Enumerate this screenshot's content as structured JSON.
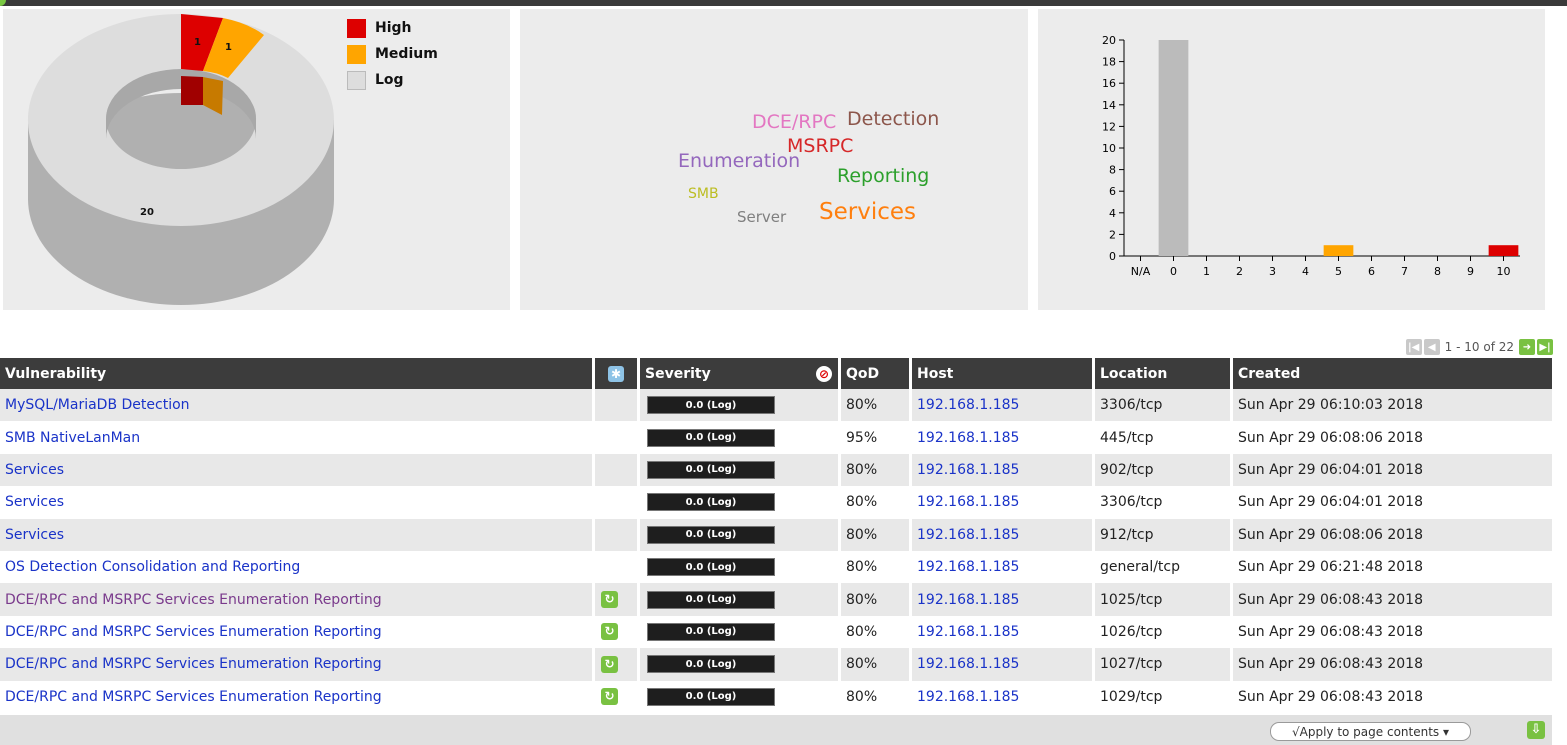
{
  "severity_donut": {
    "legend": [
      {
        "label": "High",
        "color": "#dd0000"
      },
      {
        "label": "Medium",
        "color": "#ffa500"
      },
      {
        "label": "Log",
        "color": "#dddddd"
      }
    ],
    "slice_labels": {
      "high": "1",
      "medium": "1",
      "log": "20"
    },
    "counts": {
      "high": 1,
      "medium": 1,
      "log": 20
    }
  },
  "word_cloud": {
    "words": [
      {
        "text": "DCE/RPC",
        "color": "#e377c2"
      },
      {
        "text": "Detection",
        "color": "#8c564b"
      },
      {
        "text": "MSRPC",
        "color": "#d62728"
      },
      {
        "text": "Enumeration",
        "color": "#9467bd"
      },
      {
        "text": "Reporting",
        "color": "#2ca02c"
      },
      {
        "text": "SMB",
        "color": "#bcbd22"
      },
      {
        "text": "Server",
        "color": "#7f7f7f"
      },
      {
        "text": "Services",
        "color": "#ff7f0e"
      }
    ]
  },
  "chart_data": {
    "type": "bar",
    "categories": [
      "N/A",
      "0",
      "1",
      "2",
      "3",
      "4",
      "5",
      "6",
      "7",
      "8",
      "9",
      "10"
    ],
    "values": [
      0,
      20,
      0,
      0,
      0,
      0,
      1,
      0,
      0,
      0,
      0,
      1
    ],
    "bar_colors": [
      "#bbbbbb",
      "#bbbbbb",
      "#bbbbbb",
      "#bbbbbb",
      "#bbbbbb",
      "#bbbbbb",
      "#ffa500",
      "#bbbbbb",
      "#bbbbbb",
      "#bbbbbb",
      "#bbbbbb",
      "#dd0000"
    ],
    "y_ticks": [
      "0",
      "2",
      "4",
      "6",
      "8",
      "10",
      "12",
      "14",
      "16",
      "18",
      "20"
    ],
    "ylim": [
      0,
      20
    ],
    "title": "",
    "xlabel": "",
    "ylabel": ""
  },
  "pager": {
    "text": "1 - 10 of 22"
  },
  "table": {
    "headers": {
      "vulnerability": "Vulnerability",
      "severity": "Severity",
      "qod": "QoD",
      "host": "Host",
      "location": "Location",
      "created": "Created"
    },
    "severity_label": "0.0 (Log)",
    "rows": [
      {
        "vulnerability": "MySQL/MariaDB Detection",
        "qod": "80%",
        "host": "192.168.1.185",
        "location": "3306/tcp",
        "created": "Sun Apr 29 06:10:03 2018"
      },
      {
        "vulnerability": "SMB NativeLanMan",
        "qod": "95%",
        "host": "192.168.1.185",
        "location": "445/tcp",
        "created": "Sun Apr 29 06:08:06 2018"
      },
      {
        "vulnerability": "Services",
        "qod": "80%",
        "host": "192.168.1.185",
        "location": "902/tcp",
        "created": "Sun Apr 29 06:04:01 2018"
      },
      {
        "vulnerability": "Services",
        "qod": "80%",
        "host": "192.168.1.185",
        "location": "3306/tcp",
        "created": "Sun Apr 29 06:04:01 2018"
      },
      {
        "vulnerability": "Services",
        "qod": "80%",
        "host": "192.168.1.185",
        "location": "912/tcp",
        "created": "Sun Apr 29 06:08:06 2018"
      },
      {
        "vulnerability": "OS Detection Consolidation and Reporting",
        "qod": "80%",
        "host": "192.168.1.185",
        "location": "general/tcp",
        "created": "Sun Apr 29 06:21:48 2018"
      },
      {
        "vulnerability": "DCE/RPC and MSRPC Services Enumeration Reporting",
        "qod": "80%",
        "host": "192.168.1.185",
        "location": "1025/tcp",
        "created": "Sun Apr 29 06:08:43 2018"
      },
      {
        "vulnerability": "DCE/RPC and MSRPC Services Enumeration Reporting",
        "qod": "80%",
        "host": "192.168.1.185",
        "location": "1026/tcp",
        "created": "Sun Apr 29 06:08:43 2018"
      },
      {
        "vulnerability": "DCE/RPC and MSRPC Services Enumeration Reporting",
        "qod": "80%",
        "host": "192.168.1.185",
        "location": "1027/tcp",
        "created": "Sun Apr 29 06:08:43 2018"
      },
      {
        "vulnerability": "DCE/RPC and MSRPC Services Enumeration Reporting",
        "qod": "80%",
        "host": "192.168.1.185",
        "location": "1029/tcp",
        "created": "Sun Apr 29 06:08:43 2018"
      }
    ]
  },
  "footer": {
    "apply_label": "√Apply to page contents ▾"
  }
}
